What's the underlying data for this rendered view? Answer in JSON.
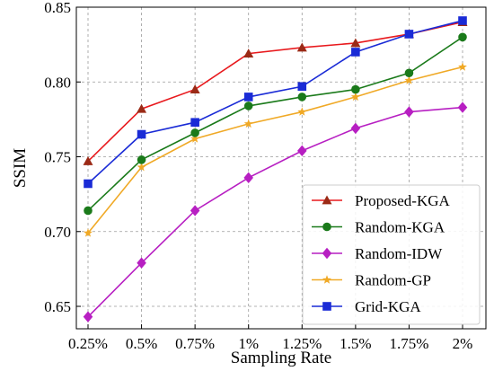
{
  "chart_data": {
    "type": "line",
    "xlabel": "Sampling Rate",
    "ylabel": "SSIM",
    "categories": [
      "0.25%",
      "0.5%",
      "0.75%",
      "1%",
      "1.25%",
      "1.5%",
      "1.75%",
      "2%"
    ],
    "ylim": [
      0.635,
      0.85
    ],
    "yticks": [
      0.65,
      0.7,
      0.75,
      0.8,
      0.85
    ],
    "ytick_labels": [
      "0.65",
      "0.70",
      "0.75",
      "0.80",
      "0.85"
    ],
    "grid": true,
    "legend_position": "bottom-right",
    "series": [
      {
        "name": "Proposed-KGA",
        "color": "#e8191d",
        "marker": "triangle",
        "marker_color": "#9b2a16",
        "values": [
          0.747,
          0.782,
          0.795,
          0.819,
          0.823,
          0.826,
          0.832,
          0.84
        ]
      },
      {
        "name": "Random-KGA",
        "color": "#1a7a1a",
        "marker": "circle",
        "marker_color": "#1a7a1a",
        "values": [
          0.714,
          0.748,
          0.766,
          0.784,
          0.79,
          0.795,
          0.806,
          0.83
        ]
      },
      {
        "name": "Random-IDW",
        "color": "#b71fc2",
        "marker": "diamond",
        "marker_color": "#b71fc2",
        "values": [
          0.643,
          0.679,
          0.714,
          0.736,
          0.754,
          0.769,
          0.78,
          0.783
        ]
      },
      {
        "name": "Random-GP",
        "color": "#f0a926",
        "marker": "star",
        "marker_color": "#f0a926",
        "values": [
          0.699,
          0.743,
          0.762,
          0.772,
          0.78,
          0.79,
          0.801,
          0.81
        ]
      },
      {
        "name": "Grid-KGA",
        "color": "#1a2bd6",
        "marker": "square",
        "marker_color": "#1a2bd6",
        "values": [
          0.732,
          0.765,
          0.773,
          0.79,
          0.797,
          0.82,
          0.832,
          0.841
        ]
      }
    ]
  }
}
